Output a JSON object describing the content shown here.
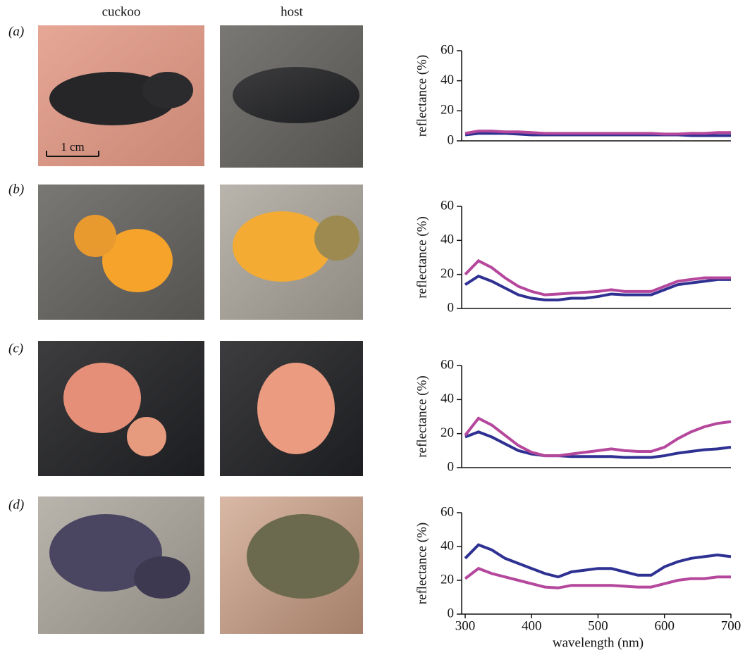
{
  "column_labels": [
    "cuckoo",
    "host"
  ],
  "scale_bar": "1 cm",
  "panel_labels": [
    "(a)",
    "(b)",
    "(c)",
    "(d)"
  ],
  "chart_data": [
    {
      "type": "line",
      "ylabel": "reflectance (%)",
      "x": [
        300,
        320,
        340,
        360,
        380,
        400,
        420,
        440,
        460,
        480,
        500,
        520,
        540,
        560,
        580,
        600,
        620,
        640,
        660,
        680,
        700
      ],
      "xlim": [
        300,
        700
      ],
      "ylim": [
        0,
        60
      ],
      "yticks": [
        0,
        20,
        40,
        60
      ],
      "series": [
        {
          "color": "#2e3192",
          "values": [
            4,
            5,
            5,
            5,
            4.5,
            4,
            4,
            4,
            4,
            4,
            4,
            4,
            4,
            4,
            4,
            4,
            4,
            3.5,
            3.5,
            3.5,
            3.5
          ]
        },
        {
          "color": "#b5479c",
          "values": [
            5,
            6.5,
            6.5,
            6,
            6,
            5.5,
            5,
            5,
            5,
            5,
            5,
            5,
            5,
            5,
            5,
            4.5,
            4.5,
            5,
            5,
            5.5,
            5.5
          ]
        }
      ]
    },
    {
      "type": "line",
      "ylabel": "reflectance (%)",
      "x": [
        300,
        320,
        340,
        360,
        380,
        400,
        420,
        440,
        460,
        480,
        500,
        520,
        540,
        560,
        580,
        600,
        620,
        640,
        660,
        680,
        700
      ],
      "xlim": [
        300,
        700
      ],
      "ylim": [
        0,
        60
      ],
      "yticks": [
        0,
        20,
        40,
        60
      ],
      "series": [
        {
          "color": "#2e3192",
          "values": [
            14,
            19,
            16,
            12,
            8,
            6,
            5,
            5,
            6,
            6,
            7,
            8.5,
            8,
            8,
            8,
            11,
            14,
            15,
            16,
            17,
            17
          ]
        },
        {
          "color": "#b5479c",
          "values": [
            20,
            28,
            24,
            18,
            13,
            10,
            8,
            8.5,
            9,
            9.5,
            10,
            11,
            10,
            10,
            10,
            13,
            16,
            17,
            18,
            18,
            18
          ]
        }
      ]
    },
    {
      "type": "line",
      "ylabel": "reflectance (%)",
      "x": [
        300,
        320,
        340,
        360,
        380,
        400,
        420,
        440,
        460,
        480,
        500,
        520,
        540,
        560,
        580,
        600,
        620,
        640,
        660,
        680,
        700
      ],
      "xlim": [
        300,
        700
      ],
      "ylim": [
        0,
        60
      ],
      "yticks": [
        0,
        20,
        40,
        60
      ],
      "series": [
        {
          "color": "#2e3192",
          "values": [
            18,
            21,
            18,
            14,
            10,
            8,
            7,
            7,
            6.5,
            6.5,
            6.5,
            6.5,
            6,
            6,
            6,
            7,
            8.5,
            9.5,
            10.5,
            11,
            12
          ]
        },
        {
          "color": "#b5479c",
          "values": [
            19,
            29,
            25,
            19,
            13,
            9,
            7,
            7,
            8,
            9,
            10,
            11,
            10,
            9.5,
            9.5,
            12,
            17,
            21,
            24,
            26,
            27
          ]
        }
      ]
    },
    {
      "type": "line",
      "ylabel": "reflectance (%)",
      "xlabel": "wavelength (nm)",
      "x": [
        300,
        320,
        340,
        360,
        380,
        400,
        420,
        440,
        460,
        480,
        500,
        520,
        540,
        560,
        580,
        600,
        620,
        640,
        660,
        680,
        700
      ],
      "xlim": [
        300,
        700
      ],
      "xticks": [
        300,
        400,
        500,
        600,
        700
      ],
      "ylim": [
        0,
        60
      ],
      "yticks": [
        0,
        20,
        40,
        60
      ],
      "series": [
        {
          "color": "#2e3192",
          "values": [
            33,
            41,
            38,
            33,
            30,
            27,
            24,
            22,
            25,
            26,
            27,
            27,
            25,
            23,
            23,
            28,
            31,
            33,
            34,
            35,
            34
          ]
        },
        {
          "color": "#b5479c",
          "values": [
            21,
            27,
            24,
            22,
            20,
            18,
            16,
            15.5,
            17,
            17,
            17,
            17,
            16.5,
            16,
            16,
            18,
            20,
            21,
            21,
            22,
            22
          ]
        }
      ]
    }
  ]
}
